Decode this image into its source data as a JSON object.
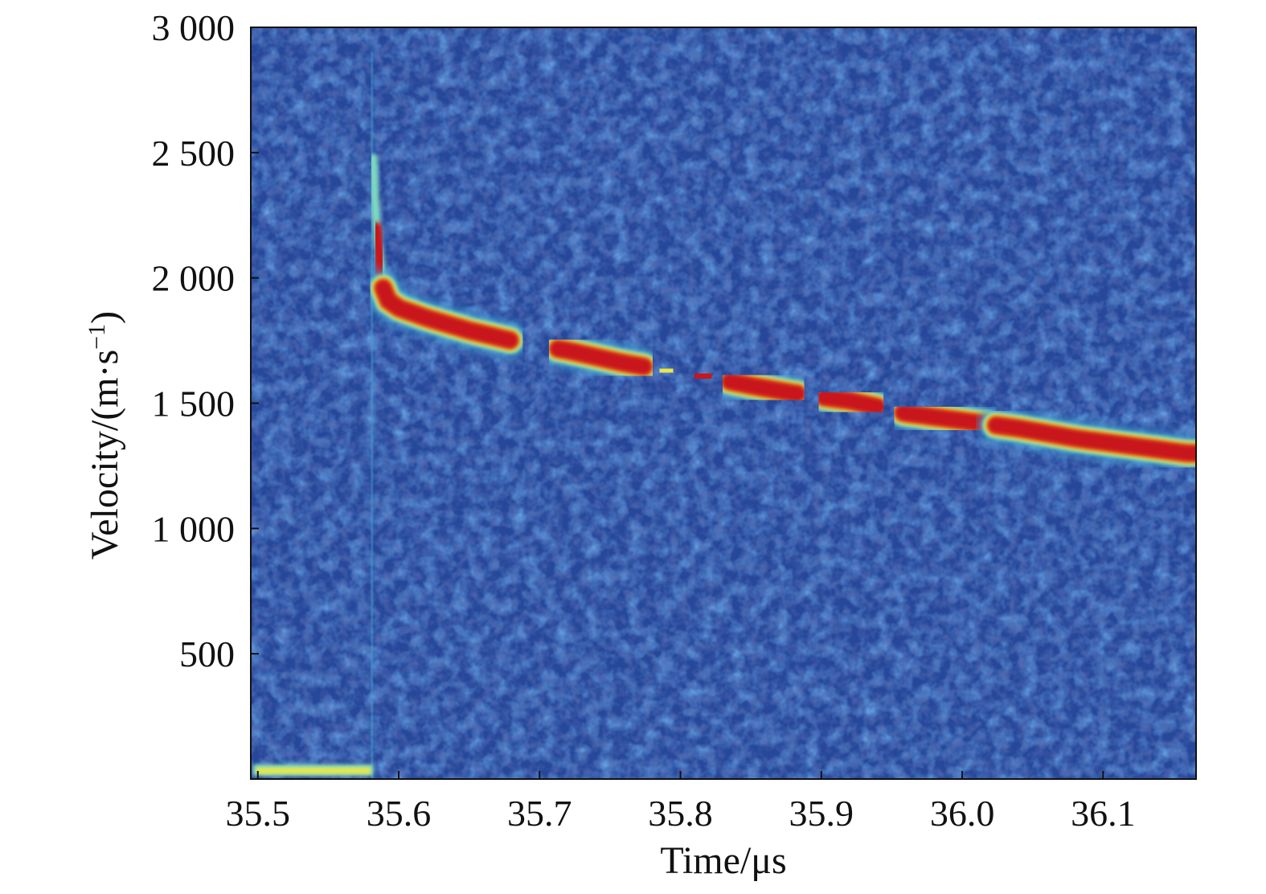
{
  "chart_data": {
    "type": "heatmap",
    "xlabel": "Time/μs",
    "ylabel": "Velocity/(m·s",
    "ylabel_unit_sup": "−1",
    "ylabel_close": ")",
    "xlim": [
      35.495,
      36.166
    ],
    "ylim": [
      0,
      3000
    ],
    "x_ticks": [
      35.5,
      35.6,
      35.7,
      35.8,
      35.9,
      36.0,
      36.1
    ],
    "x_tick_labels": [
      "35.5",
      "35.6",
      "35.7",
      "35.8",
      "35.9",
      "36.0",
      "36.1"
    ],
    "y_ticks": [
      500,
      1000,
      1500,
      2000,
      2500,
      3000
    ],
    "y_tick_labels": [
      "500",
      "1 000",
      "1 500",
      "2 000",
      "2 500",
      "3 000"
    ],
    "colormap": [
      "#1c2a7c",
      "#2a4fa8",
      "#3f9fd3",
      "#7fd9c0",
      "#e9e84a",
      "#e8801e",
      "#c8161a"
    ],
    "background_color": "#27489a",
    "series": [
      {
        "values": [
          {
            "x": 35.583,
            "y": 2200
          },
          {
            "x": 35.59,
            "y": 1920
          },
          {
            "x": 35.6,
            "y": 1880
          },
          {
            "x": 35.62,
            "y": 1840
          },
          {
            "x": 35.65,
            "y": 1790
          },
          {
            "x": 35.68,
            "y": 1750
          },
          {
            "x": 35.72,
            "y": 1710
          },
          {
            "x": 35.76,
            "y": 1660
          },
          {
            "x": 35.79,
            "y": 1630
          },
          {
            "x": 35.815,
            "y": 1610
          },
          {
            "x": 35.85,
            "y": 1570
          },
          {
            "x": 35.88,
            "y": 1540
          },
          {
            "x": 35.92,
            "y": 1510
          },
          {
            "x": 35.96,
            "y": 1460
          },
          {
            "x": 36.0,
            "y": 1430
          },
          {
            "x": 36.04,
            "y": 1400
          },
          {
            "x": 36.08,
            "y": 1360
          },
          {
            "x": 36.12,
            "y": 1330
          },
          {
            "x": 36.16,
            "y": 1300
          }
        ]
      }
    ],
    "baseline_signal": {
      "x_start": 35.497,
      "x_end": 35.582,
      "y": 20
    }
  }
}
